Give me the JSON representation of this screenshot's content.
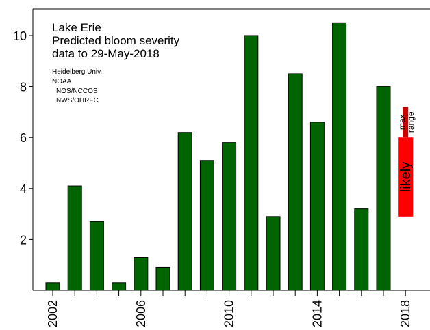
{
  "chart_data": {
    "type": "bar",
    "title_lines": [
      "Lake Erie",
      "Predicted bloom severity",
      "data to 29-May-2018"
    ],
    "credits": [
      "Heidelberg Univ.",
      "NOAA",
      "NOS/NCCOS",
      "NWS/OHRFC"
    ],
    "categories": [
      2002,
      2003,
      2004,
      2005,
      2006,
      2007,
      2008,
      2009,
      2010,
      2011,
      2012,
      2013,
      2014,
      2015,
      2016,
      2017
    ],
    "values": [
      0.3,
      4.1,
      2.7,
      0.3,
      1.3,
      0.9,
      6.2,
      5.1,
      5.8,
      10.0,
      2.9,
      8.5,
      6.6,
      10.5,
      3.2,
      8.0
    ],
    "bar_color": "#006400",
    "x_ticks": [
      2002,
      2006,
      2010,
      2014,
      2018
    ],
    "y_ticks": [
      2,
      4,
      6,
      8,
      10
    ],
    "xlim": [
      2001.5,
      2019.2
    ],
    "ylim": [
      0,
      11
    ],
    "forecast": {
      "year": 2018,
      "max_range": {
        "low": 6.0,
        "high": 7.2,
        "label_line1": "max",
        "label_line2": "range",
        "color": "#cc0000"
      },
      "likely": {
        "low": 2.9,
        "high": 6.0,
        "label": "likely",
        "color": "#ff0000"
      }
    }
  }
}
